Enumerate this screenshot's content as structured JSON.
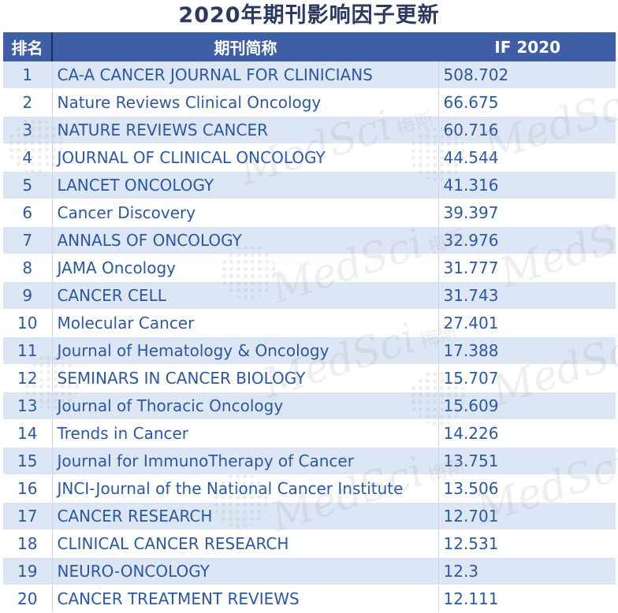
{
  "title": "2020年期刊影响因子更新",
  "header": {
    "rank": "排名",
    "name": "期刊简称",
    "impact": "IF 2020"
  },
  "rows": [
    {
      "rank": "1",
      "name": "CA-A CANCER JOURNAL FOR CLINICIANS",
      "if": "508.702"
    },
    {
      "rank": "2",
      "name": "Nature Reviews Clinical Oncology",
      "if": "66.675"
    },
    {
      "rank": "3",
      "name": "NATURE REVIEWS CANCER",
      "if": "60.716"
    },
    {
      "rank": "4",
      "name": "JOURNAL OF CLINICAL ONCOLOGY",
      "if": "44.544"
    },
    {
      "rank": "5",
      "name": "LANCET ONCOLOGY",
      "if": "41.316"
    },
    {
      "rank": "6",
      "name": "Cancer Discovery",
      "if": "39.397"
    },
    {
      "rank": "7",
      "name": "ANNALS OF ONCOLOGY",
      "if": "32.976"
    },
    {
      "rank": "8",
      "name": "JAMA Oncology",
      "if": "31.777"
    },
    {
      "rank": "9",
      "name": "CANCER CELL",
      "if": "31.743"
    },
    {
      "rank": "10",
      "name": "Molecular Cancer",
      "if": "27.401"
    },
    {
      "rank": "11",
      "name": "Journal of Hematology & Oncology",
      "if": "17.388"
    },
    {
      "rank": "12",
      "name": "SEMINARS IN CANCER BIOLOGY",
      "if": "15.707"
    },
    {
      "rank": "13",
      "name": "Journal of Thoracic Oncology",
      "if": "15.609"
    },
    {
      "rank": "14",
      "name": "Trends in Cancer",
      "if": "14.226"
    },
    {
      "rank": "15",
      "name": "Journal for ImmunoTherapy of Cancer",
      "if": "13.751"
    },
    {
      "rank": "16",
      "name": "JNCI-Journal of the National Cancer Institute",
      "if": "13.506"
    },
    {
      "rank": "17",
      "name": "CANCER RESEARCH",
      "if": "12.701"
    },
    {
      "rank": "18",
      "name": "CLINICAL CANCER RESEARCH",
      "if": "12.531"
    },
    {
      "rank": "19",
      "name": "NEURO-ONCOLOGY",
      "if": "12.3"
    },
    {
      "rank": "20",
      "name": "CANCER TREATMENT REVIEWS",
      "if": "12.111"
    }
  ],
  "watermark": {
    "text": "MedSci",
    "cn": "梅斯"
  },
  "colors": {
    "header_bg": "#3f5ea5",
    "stripe": "#dde6f4",
    "text": "#2c58a3",
    "title": "#2b3a5e"
  }
}
